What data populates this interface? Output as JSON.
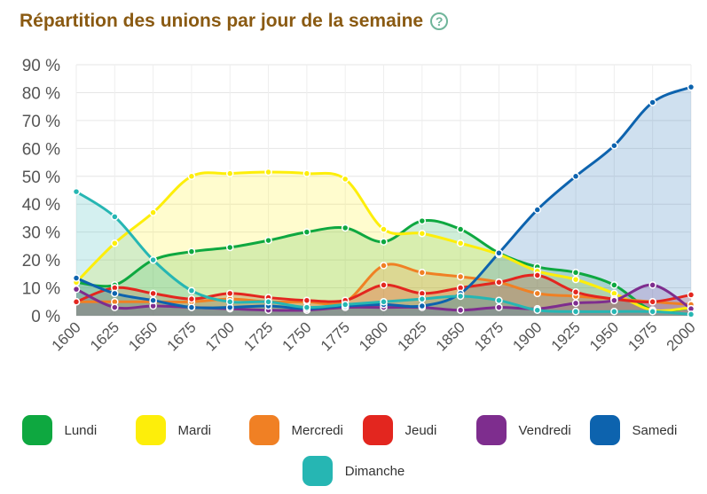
{
  "title": "Répartition des unions par jour de la semaine",
  "help_glyph": "?",
  "chart_data": {
    "type": "area",
    "x": [
      1600,
      1625,
      1650,
      1675,
      1700,
      1725,
      1750,
      1775,
      1800,
      1825,
      1850,
      1875,
      1900,
      1925,
      1950,
      1975,
      2000
    ],
    "x_ticks": [
      "1600",
      "1625",
      "1650",
      "1675",
      "1700",
      "1725",
      "1750",
      "1775",
      "1800",
      "1825",
      "1850",
      "1875",
      "1900",
      "1925",
      "1950",
      "1975",
      "2000"
    ],
    "y_ticks": [
      "0 %",
      "10 %",
      "20 %",
      "30 %",
      "40 %",
      "50 %",
      "60 %",
      "70 %",
      "80 %",
      "90 %"
    ],
    "ylim": [
      0,
      90
    ],
    "grid": true,
    "legend_position": "bottom",
    "series": [
      {
        "name": "Lundi",
        "color": "#0ea840",
        "values": [
          12,
          11,
          20,
          23,
          24.5,
          27,
          30,
          31.5,
          26.5,
          34,
          31,
          22.5,
          17.5,
          15.5,
          11,
          2,
          3
        ]
      },
      {
        "name": "Mardi",
        "color": "#fdee0a",
        "values": [
          12,
          26,
          37,
          50,
          51,
          51.5,
          51,
          49,
          31,
          29.5,
          26,
          22,
          16,
          13,
          8,
          2,
          3
        ]
      },
      {
        "name": "Mercredi",
        "color": "#f08024",
        "values": [
          5,
          5,
          5,
          5,
          6,
          5,
          5,
          5,
          18,
          15.5,
          14,
          12,
          8,
          7,
          6,
          5,
          4
        ]
      },
      {
        "name": "Jeudi",
        "color": "#e3261f",
        "values": [
          5,
          10,
          8,
          6,
          8,
          6.5,
          5.5,
          5.5,
          11,
          8,
          10,
          12,
          14.5,
          8.5,
          6,
          5,
          7.5
        ]
      },
      {
        "name": "Vendredi",
        "color": "#7e2d8e",
        "values": [
          9.5,
          3,
          3.5,
          3,
          2.5,
          2,
          2,
          3,
          3,
          3,
          2,
          3,
          2.5,
          4.5,
          5.5,
          11,
          2.5
        ]
      },
      {
        "name": "Samedi",
        "color": "#0d63ae",
        "values": [
          13.5,
          8,
          5.5,
          3,
          3,
          3.5,
          2.5,
          3.5,
          4,
          3.5,
          8,
          22.5,
          38,
          50,
          61,
          76.5,
          82
        ]
      },
      {
        "name": "Dimanche",
        "color": "#26b6b3",
        "values": [
          44.5,
          35.5,
          20,
          9,
          5,
          5,
          3,
          4,
          5,
          6,
          7,
          5.5,
          2,
          1.5,
          1.5,
          1.5,
          0.5
        ]
      }
    ]
  }
}
